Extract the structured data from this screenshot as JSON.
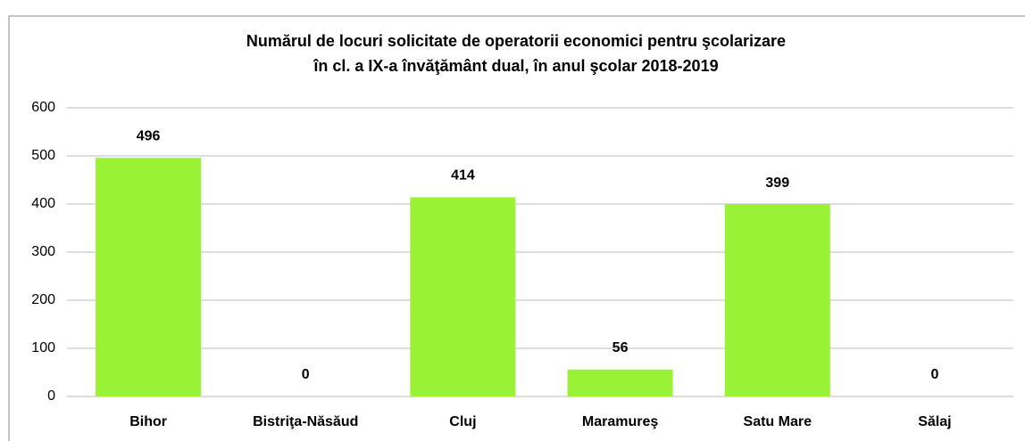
{
  "chart_data": {
    "type": "bar",
    "title": [
      "Numărul de locuri solicitate de operatorii economici pentru şcolarizare",
      "în cl. a IX-a învăţământ dual, în anul şcolar 2018-2019"
    ],
    "categories": [
      "Bihor",
      "Bistriţa-Năsăud",
      "Cluj",
      "Maramureş",
      "Satu Mare",
      "Sălaj"
    ],
    "values": [
      496,
      0,
      414,
      56,
      399,
      0
    ],
    "color": "#99f235",
    "ylim": [
      0,
      600
    ],
    "yticks": [
      0,
      100,
      200,
      300,
      400,
      500,
      600
    ],
    "grid": true
  }
}
